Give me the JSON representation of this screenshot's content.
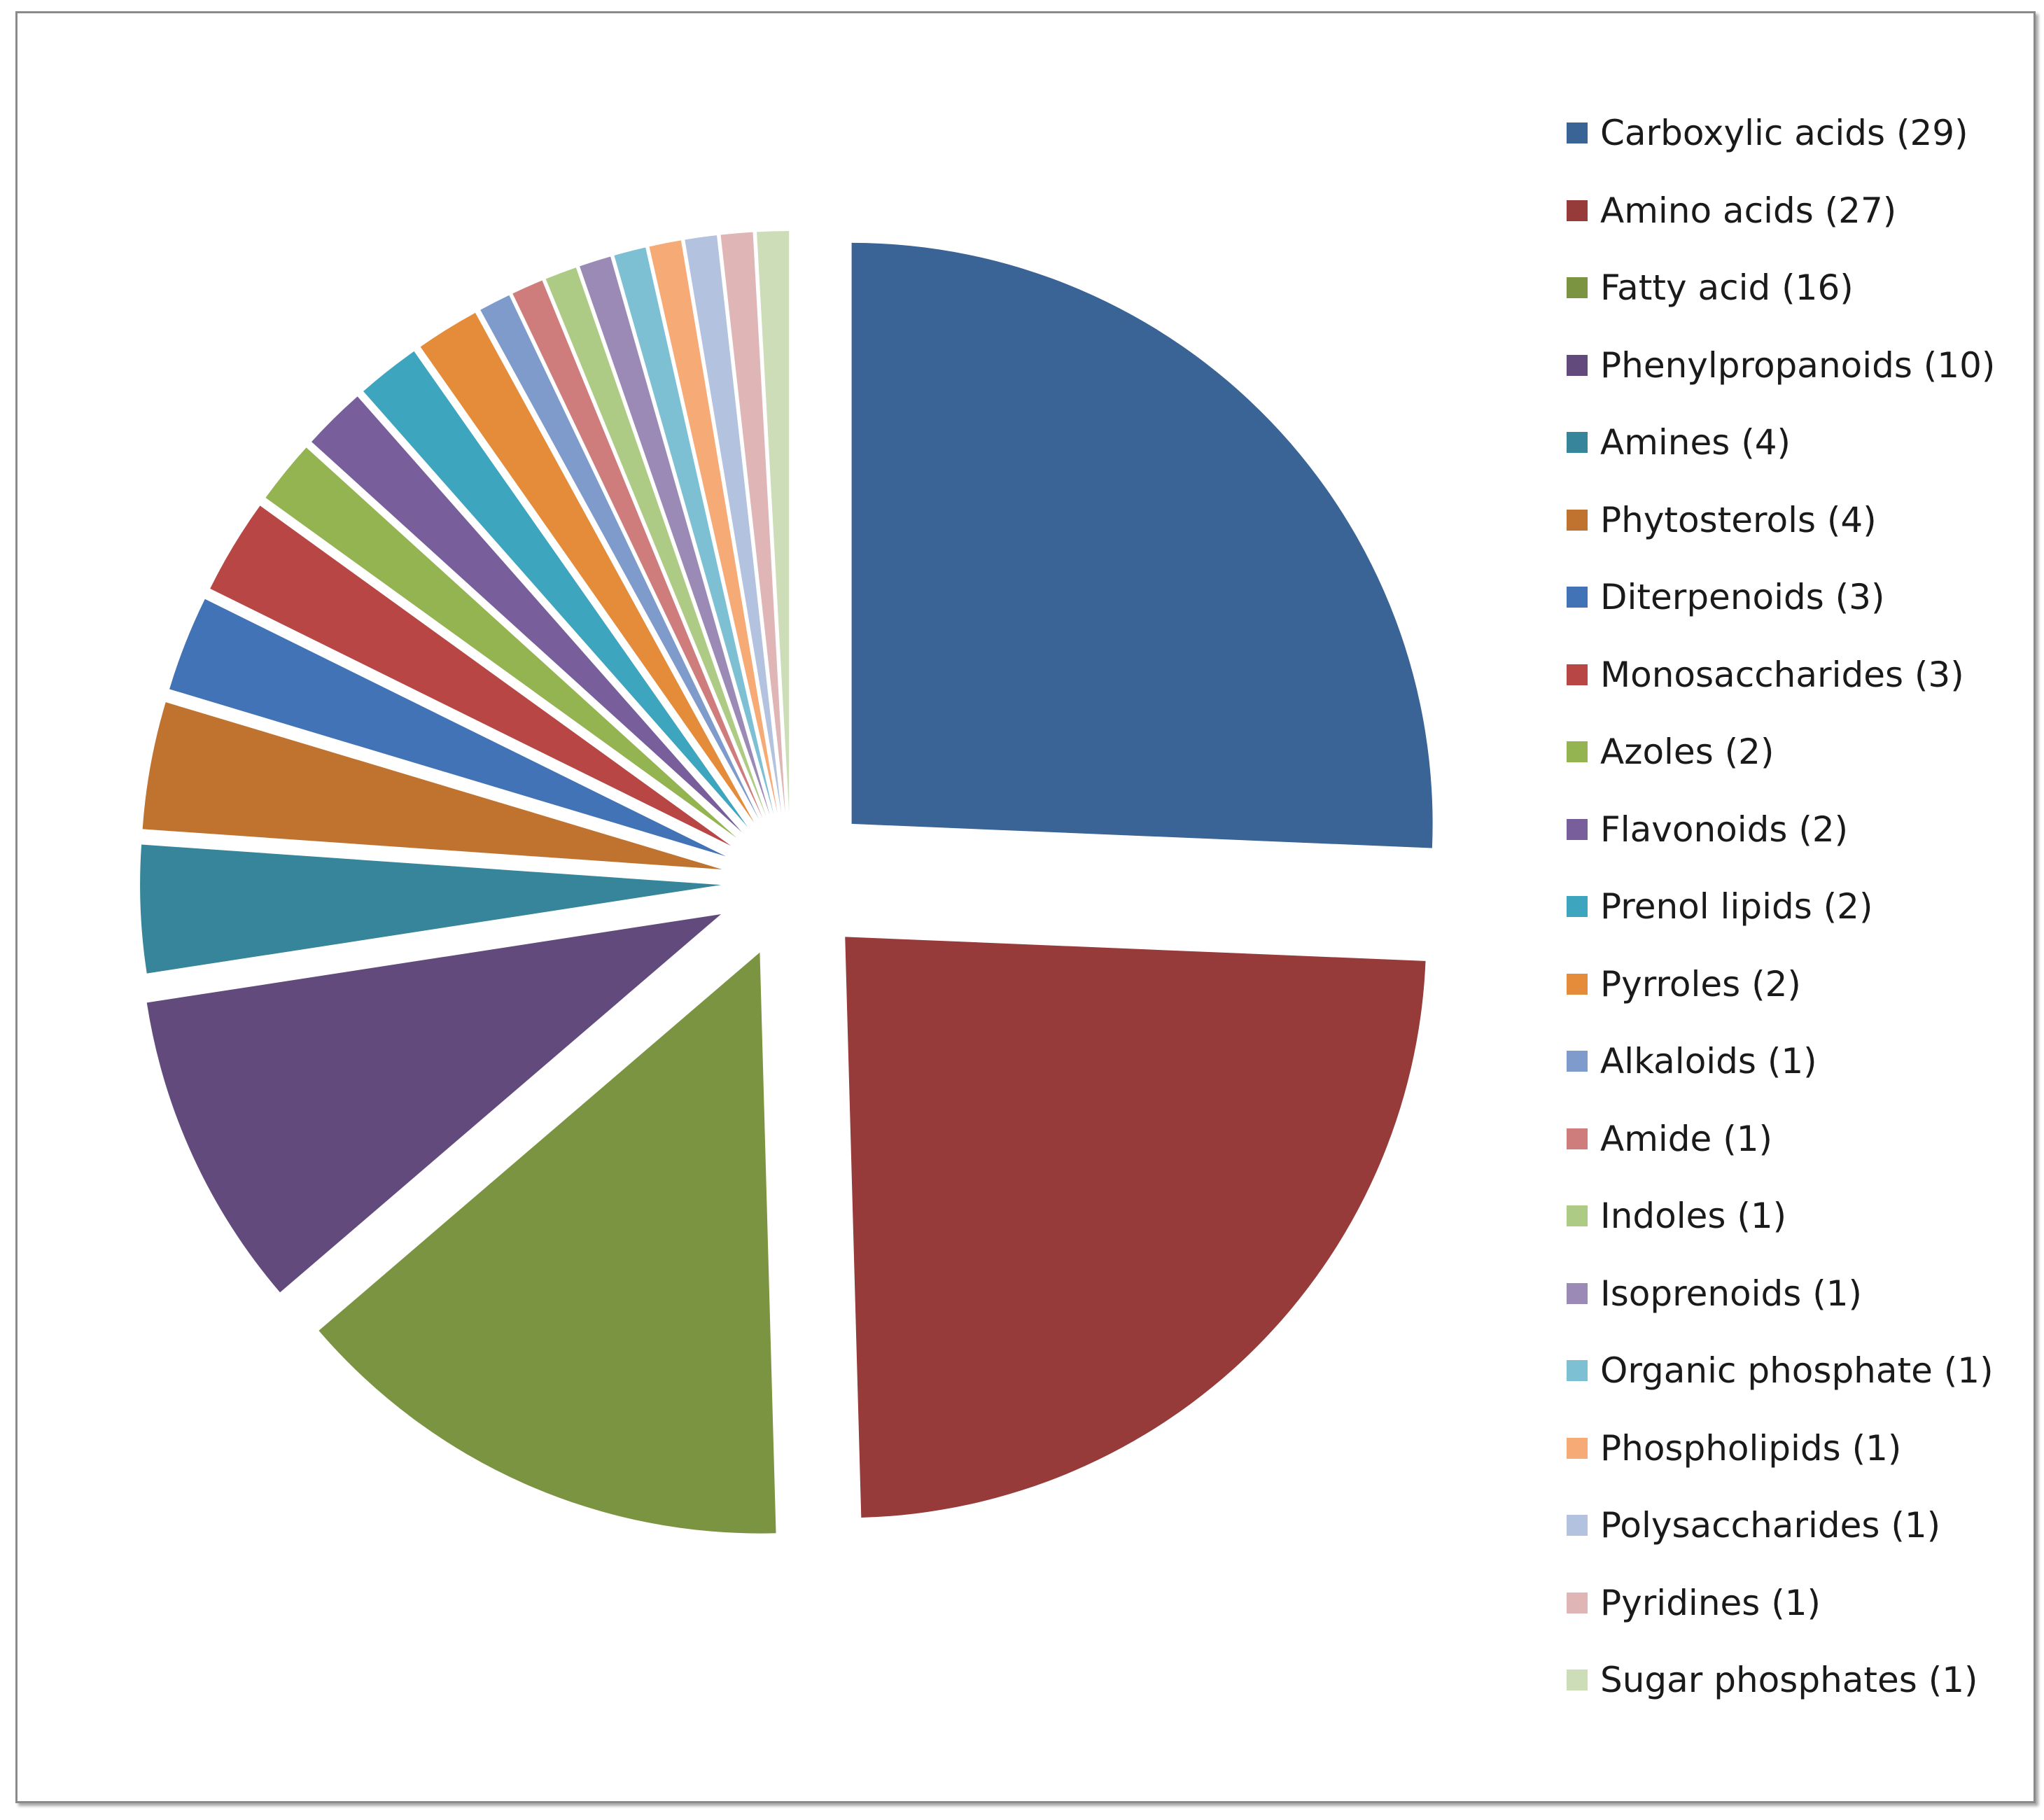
{
  "chart_data": {
    "type": "pie",
    "title": "",
    "legend_position": "right",
    "exploded": true,
    "slices": [
      {
        "label": "Carboxylic acids (29)",
        "value": 29,
        "color": "#3A6396"
      },
      {
        "label": "Amino acids (27)",
        "value": 27,
        "color": "#963A3A"
      },
      {
        "label": "Fatty acid (16)",
        "value": 16,
        "color": "#7A9441"
      },
      {
        "label": "Phenylpropanoids (10)",
        "value": 10,
        "color": "#624B7C"
      },
      {
        "label": "Amines (4)",
        "value": 4,
        "color": "#36859A"
      },
      {
        "label": "Phytosterols (4)",
        "value": 4,
        "color": "#C0722F"
      },
      {
        "label": "Diterpenoids (3)",
        "value": 3,
        "color": "#4173B6"
      },
      {
        "label": "Monosaccharides (3)",
        "value": 3,
        "color": "#B84644"
      },
      {
        "label": "Azoles (2)",
        "value": 2,
        "color": "#93B451"
      },
      {
        "label": "Flavonoids (2)",
        "value": 2,
        "color": "#795E9C"
      },
      {
        "label": "Prenol lipids (2)",
        "value": 2,
        "color": "#3EA5BF"
      },
      {
        "label": "Pyrroles (2)",
        "value": 2,
        "color": "#E58C3B"
      },
      {
        "label": "Alkaloids (1)",
        "value": 1,
        "color": "#7E9BCC"
      },
      {
        "label": "Amide (1)",
        "value": 1,
        "color": "#CF7D7C"
      },
      {
        "label": "Indoles (1)",
        "value": 1,
        "color": "#AECB85"
      },
      {
        "label": "Isoprenoids (1)",
        "value": 1,
        "color": "#9B8AB6"
      },
      {
        "label": "Organic phosphate (1)",
        "value": 1,
        "color": "#7DC0D3"
      },
      {
        "label": "Phospholipids (1)",
        "value": 1,
        "color": "#F6AA76"
      },
      {
        "label": "Polysaccharides (1)",
        "value": 1,
        "color": "#B3C2DE"
      },
      {
        "label": "Pyridines (1)",
        "value": 1,
        "color": "#DFB5B5"
      },
      {
        "label": "Sugar phosphates (1)",
        "value": 1,
        "color": "#CCDDB8"
      }
    ]
  }
}
